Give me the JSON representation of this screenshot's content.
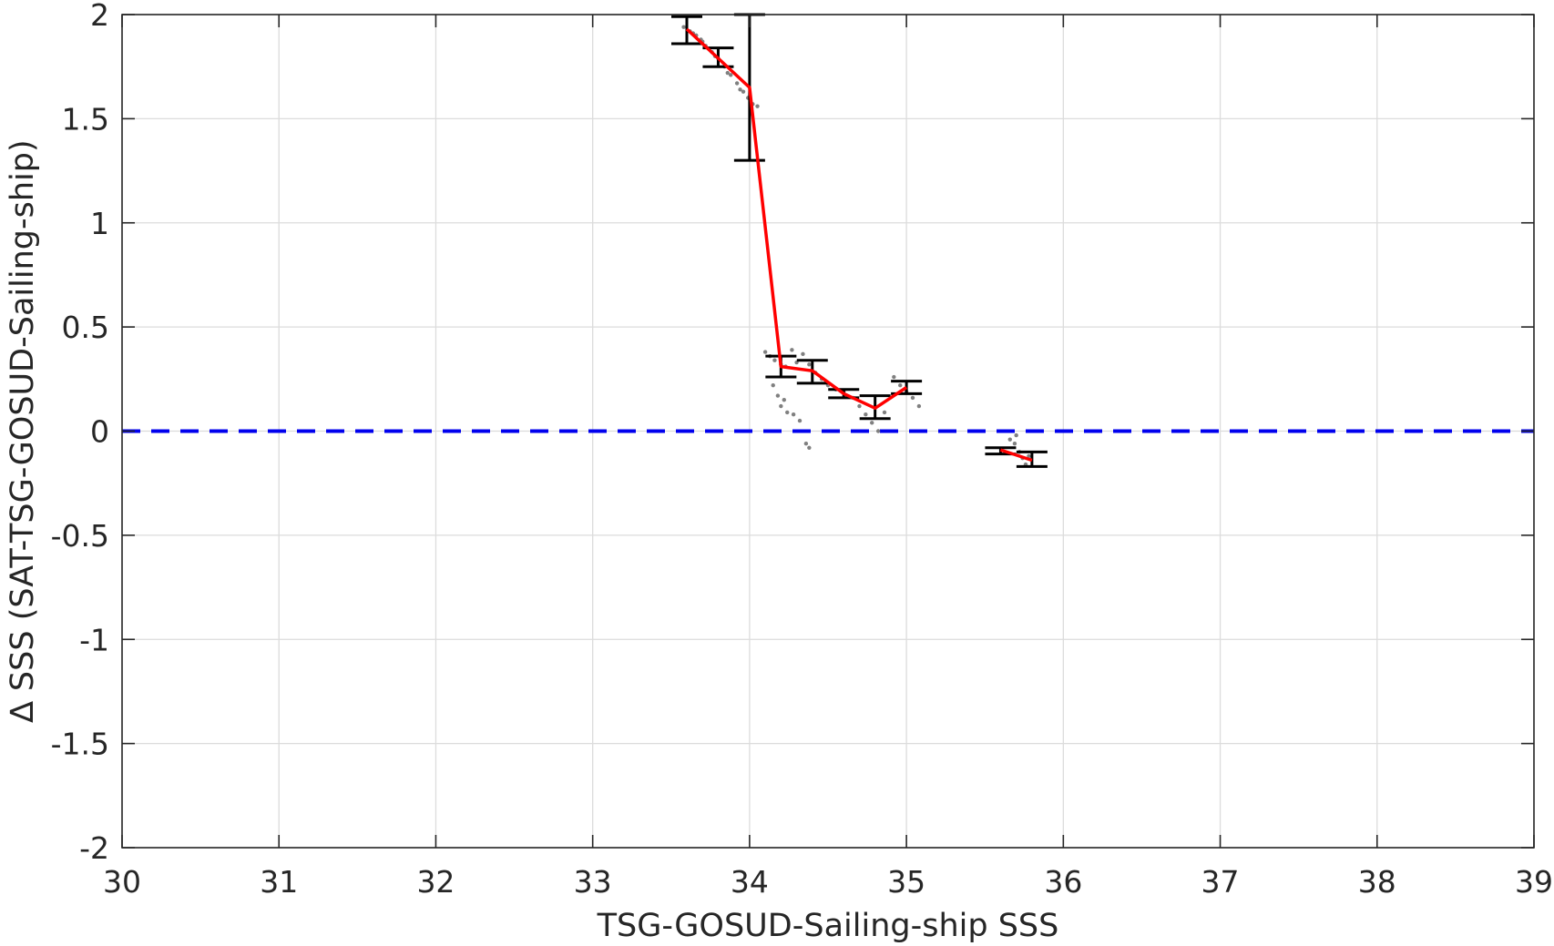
{
  "chart_data": {
    "type": "scatter",
    "title": "",
    "xlabel": "TSG-GOSUD-Sailing-ship SSS",
    "ylabel": "∆ SSS (SAT-TSG-GOSUD-Sailing-ship)",
    "xlim": [
      30,
      39
    ],
    "ylim": [
      -2,
      2
    ],
    "x_ticks": [
      30,
      31,
      32,
      33,
      34,
      35,
      36,
      37,
      38,
      39
    ],
    "y_ticks": [
      -2,
      -1.5,
      -1,
      -0.5,
      0,
      0.5,
      1,
      1.5,
      2
    ],
    "x_tick_labels": [
      "30",
      "31",
      "32",
      "33",
      "34",
      "35",
      "36",
      "37",
      "38",
      "39"
    ],
    "y_tick_labels": [
      "-2",
      "-1.5",
      "-1",
      "-0.5",
      "0",
      "0.5",
      "1",
      "1.5",
      "2"
    ],
    "grid": true,
    "legend": "none",
    "series": [
      {
        "kind": "binned-mean",
        "color": "#ff0000",
        "segments": [
          [
            {
              "x": 33.6,
              "y": 1.93,
              "lo": 1.86,
              "hi": 1.99
            },
            {
              "x": 33.8,
              "y": 1.79,
              "lo": 1.75,
              "hi": 1.84
            },
            {
              "x": 34.0,
              "y": 1.65,
              "lo": 1.3,
              "hi": 2.0
            },
            {
              "x": 34.2,
              "y": 0.31,
              "lo": 0.26,
              "hi": 0.36
            },
            {
              "x": 34.4,
              "y": 0.29,
              "lo": 0.23,
              "hi": 0.34
            },
            {
              "x": 34.6,
              "y": 0.18,
              "lo": 0.16,
              "hi": 0.2
            },
            {
              "x": 34.8,
              "y": 0.11,
              "lo": 0.06,
              "hi": 0.17
            },
            {
              "x": 35.0,
              "y": 0.21,
              "lo": 0.18,
              "hi": 0.24
            }
          ],
          [
            {
              "x": 35.6,
              "y": -0.09,
              "lo": -0.11,
              "hi": -0.08
            },
            {
              "x": 35.8,
              "y": -0.14,
              "lo": -0.17,
              "hi": -0.1
            }
          ]
        ]
      },
      {
        "kind": "individual-points",
        "color": "#808080",
        "points": [
          [
            33.58,
            1.94
          ],
          [
            33.62,
            1.92
          ],
          [
            33.66,
            1.9
          ],
          [
            33.69,
            1.88
          ],
          [
            33.72,
            1.85
          ],
          [
            33.76,
            1.82
          ],
          [
            33.8,
            1.79
          ],
          [
            33.84,
            1.75
          ],
          [
            33.88,
            1.71
          ],
          [
            33.92,
            1.67
          ],
          [
            33.96,
            1.63
          ],
          [
            33.99,
            1.6
          ],
          [
            34.02,
            1.57
          ],
          [
            34.05,
            1.56
          ],
          [
            33.64,
            1.91
          ],
          [
            33.7,
            1.87
          ],
          [
            33.78,
            1.8
          ],
          [
            33.86,
            1.72
          ],
          [
            33.94,
            1.64
          ],
          [
            34.1,
            0.38
          ],
          [
            34.13,
            0.36
          ],
          [
            34.16,
            0.34
          ],
          [
            34.2,
            0.32
          ],
          [
            34.23,
            0.31
          ],
          [
            34.27,
            0.39
          ],
          [
            34.3,
            0.33
          ],
          [
            34.34,
            0.37
          ],
          [
            34.38,
            0.32
          ],
          [
            34.42,
            0.28
          ],
          [
            34.46,
            0.25
          ],
          [
            34.5,
            0.22
          ],
          [
            34.55,
            0.2
          ],
          [
            34.6,
            0.19
          ],
          [
            34.66,
            0.16
          ],
          [
            34.7,
            0.12
          ],
          [
            34.74,
            0.08
          ],
          [
            34.78,
            0.04
          ],
          [
            34.82,
            0.0
          ],
          [
            34.86,
            0.09
          ],
          [
            34.92,
            0.26
          ],
          [
            34.96,
            0.22
          ],
          [
            35.0,
            0.19
          ],
          [
            35.04,
            0.16
          ],
          [
            35.08,
            0.12
          ],
          [
            34.15,
            0.22
          ],
          [
            34.18,
            0.17
          ],
          [
            34.2,
            0.12
          ],
          [
            34.22,
            0.15
          ],
          [
            34.24,
            0.09
          ],
          [
            34.28,
            0.08
          ],
          [
            34.32,
            0.05
          ],
          [
            34.36,
            -0.06
          ],
          [
            34.38,
            -0.08
          ],
          [
            35.66,
            -0.04
          ],
          [
            35.69,
            -0.06
          ],
          [
            35.72,
            -0.1
          ],
          [
            35.74,
            -0.13
          ],
          [
            35.76,
            -0.16
          ],
          [
            35.7,
            -0.02
          ],
          [
            35.78,
            -0.12
          ]
        ]
      }
    ],
    "reference_line": {
      "y": 0,
      "style": "dashed",
      "color": "#0000ee"
    },
    "colors": {
      "axis": "#262626",
      "grid": "#dcdcdc",
      "errorbar": "#000000"
    }
  }
}
